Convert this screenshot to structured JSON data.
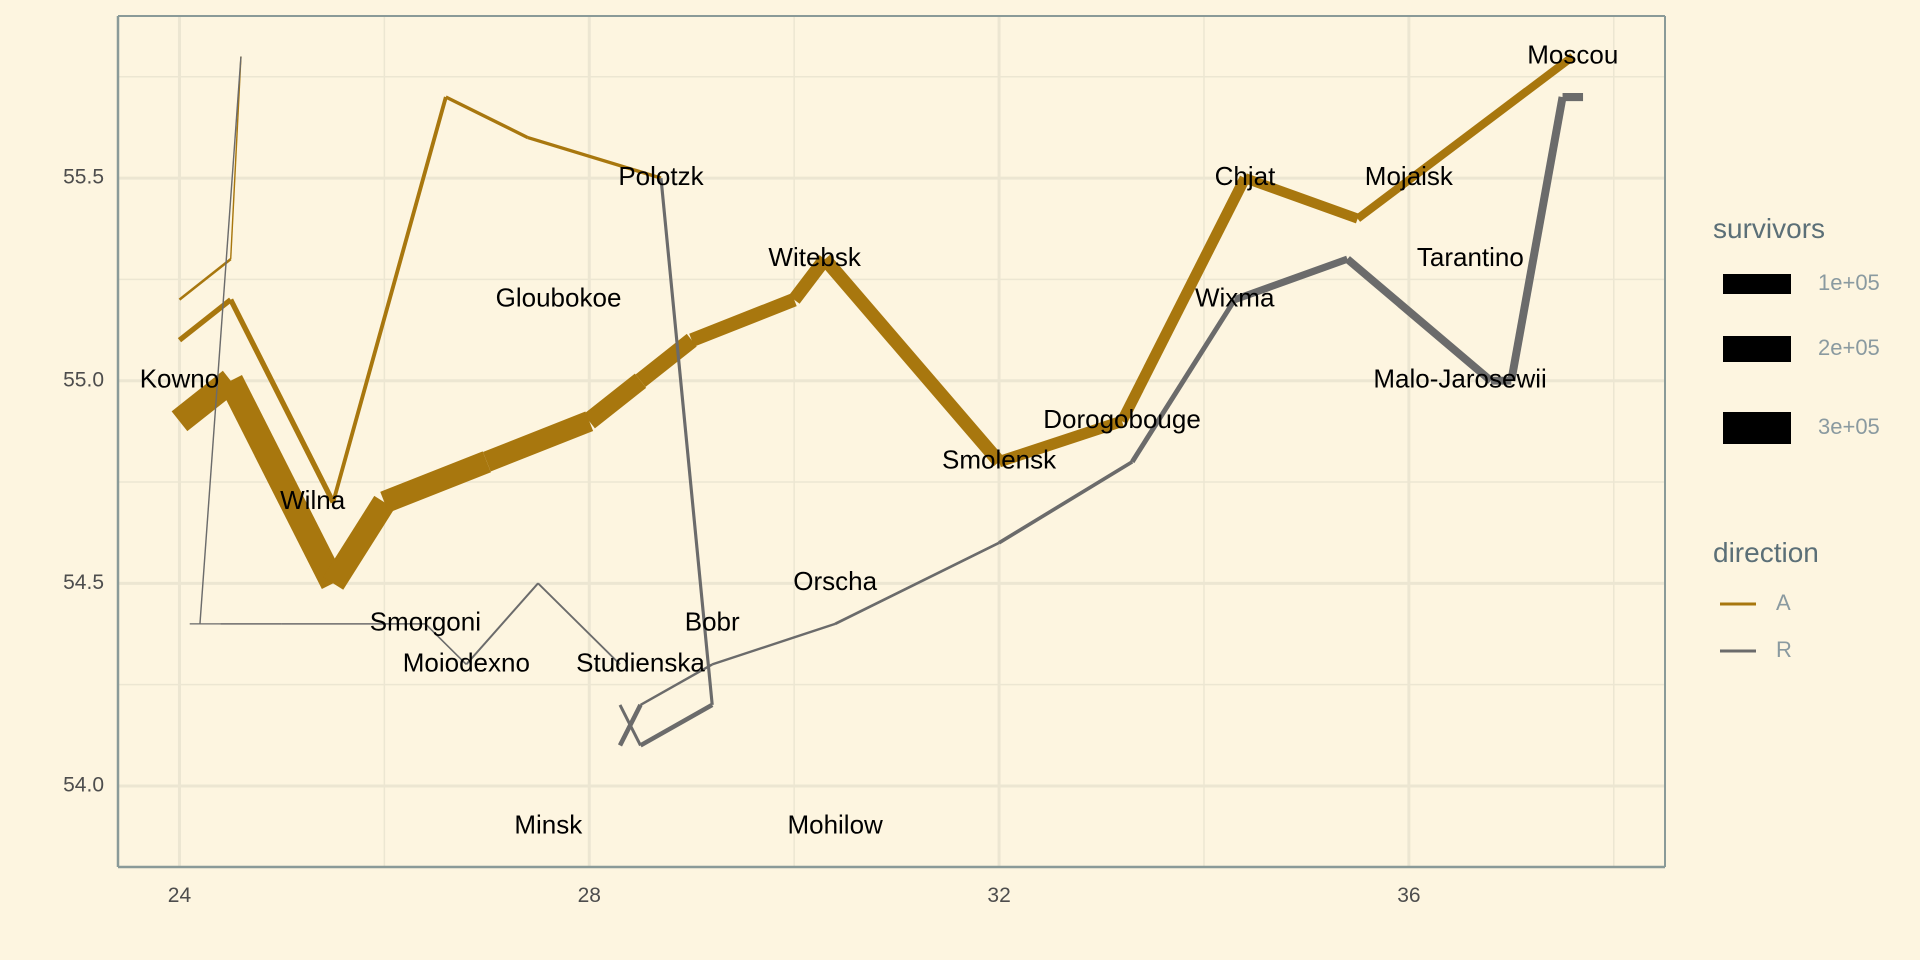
{
  "chart_data": {
    "type": "line",
    "title": "",
    "xlabel": "",
    "ylabel": "",
    "xlim": [
      23.4,
      38.5
    ],
    "ylim": [
      53.8,
      55.9
    ],
    "x_ticks": [
      {
        "value": 24,
        "label": "24"
      },
      {
        "value": 28,
        "label": "28"
      },
      {
        "value": 32,
        "label": "32"
      },
      {
        "value": 36,
        "label": "36"
      }
    ],
    "y_ticks": [
      {
        "value": 54.0,
        "label": "54.0"
      },
      {
        "value": 54.5,
        "label": "54.5"
      },
      {
        "value": 55.0,
        "label": "55.0"
      },
      {
        "value": 55.5,
        "label": "55.5"
      }
    ],
    "grid": true,
    "legend_position": "right",
    "colors": {
      "A": "#a8770e",
      "R": "#6b6b6b",
      "background": "#fdf5e0",
      "grid": "#ece6d2",
      "axis": "#8a9a98"
    },
    "segments": [
      {
        "direction": "A",
        "survivors": 340000,
        "x": [
          24.0,
          24.5
        ],
        "y": [
          54.9,
          55.0
        ]
      },
      {
        "direction": "A",
        "survivors": 340000,
        "x": [
          24.5,
          25.5
        ],
        "y": [
          55.0,
          54.5
        ]
      },
      {
        "direction": "A",
        "survivors": 320000,
        "x": [
          25.5,
          26.0
        ],
        "y": [
          54.5,
          54.7
        ]
      },
      {
        "direction": "A",
        "survivors": 300000,
        "x": [
          26.0,
          27.0
        ],
        "y": [
          54.7,
          54.8
        ]
      },
      {
        "direction": "A",
        "survivors": 280000,
        "x": [
          27.0,
          28.0
        ],
        "y": [
          54.8,
          54.9
        ]
      },
      {
        "direction": "A",
        "survivors": 240000,
        "x": [
          28.0,
          28.5
        ],
        "y": [
          54.9,
          55.0
        ]
      },
      {
        "direction": "A",
        "survivors": 210000,
        "x": [
          28.5,
          29.0
        ],
        "y": [
          55.0,
          55.1
        ]
      },
      {
        "direction": "A",
        "survivors": 180000,
        "x": [
          29.0,
          30.0
        ],
        "y": [
          55.1,
          55.2
        ]
      },
      {
        "direction": "A",
        "survivors": 175000,
        "x": [
          30.0,
          30.3
        ],
        "y": [
          55.2,
          55.3
        ]
      },
      {
        "direction": "A",
        "survivors": 175000,
        "x": [
          30.3,
          32.0
        ],
        "y": [
          55.3,
          54.8
        ]
      },
      {
        "direction": "A",
        "survivors": 145000,
        "x": [
          32.0,
          33.2
        ],
        "y": [
          54.8,
          54.9
        ]
      },
      {
        "direction": "A",
        "survivors": 140000,
        "x": [
          33.2,
          34.4
        ],
        "y": [
          54.9,
          55.5
        ]
      },
      {
        "direction": "A",
        "survivors": 127100,
        "x": [
          34.4,
          35.5
        ],
        "y": [
          55.5,
          55.4
        ]
      },
      {
        "direction": "A",
        "survivors": 100000,
        "x": [
          35.5,
          37.6
        ],
        "y": [
          55.4,
          55.8
        ]
      },
      {
        "direction": "A",
        "survivors": 60000,
        "x": [
          24.0,
          24.5
        ],
        "y": [
          55.1,
          55.2
        ]
      },
      {
        "direction": "A",
        "survivors": 60000,
        "x": [
          24.5,
          25.5
        ],
        "y": [
          55.2,
          54.7
        ]
      },
      {
        "direction": "A",
        "survivors": 40000,
        "x": [
          25.5,
          26.6
        ],
        "y": [
          54.7,
          55.7
        ]
      },
      {
        "direction": "A",
        "survivors": 33000,
        "x": [
          26.6,
          27.4
        ],
        "y": [
          55.7,
          55.6
        ]
      },
      {
        "direction": "A",
        "survivors": 33000,
        "x": [
          27.4,
          28.7
        ],
        "y": [
          55.6,
          55.5
        ]
      },
      {
        "direction": "A",
        "survivors": 22000,
        "x": [
          24.0,
          24.5
        ],
        "y": [
          55.2,
          55.3
        ]
      },
      {
        "direction": "A",
        "survivors": 6000,
        "x": [
          24.5,
          24.6
        ],
        "y": [
          55.3,
          55.8
        ]
      },
      {
        "direction": "R",
        "survivors": 100000,
        "x": [
          37.7,
          37.5
        ],
        "y": [
          55.7,
          55.7
        ]
      },
      {
        "direction": "R",
        "survivors": 98000,
        "x": [
          37.5,
          37.0
        ],
        "y": [
          55.7,
          55.0
        ]
      },
      {
        "direction": "R",
        "survivors": 97000,
        "x": [
          37.0,
          36.8
        ],
        "y": [
          55.0,
          55.0
        ]
      },
      {
        "direction": "R",
        "survivors": 96000,
        "x": [
          36.8,
          35.4
        ],
        "y": [
          55.0,
          55.3
        ]
      },
      {
        "direction": "R",
        "survivors": 87000,
        "x": [
          35.4,
          34.3
        ],
        "y": [
          55.3,
          55.2
        ]
      },
      {
        "direction": "R",
        "survivors": 55000,
        "x": [
          34.3,
          33.3
        ],
        "y": [
          55.2,
          54.8
        ]
      },
      {
        "direction": "R",
        "survivors": 37000,
        "x": [
          33.3,
          32.0
        ],
        "y": [
          54.8,
          54.6
        ]
      },
      {
        "direction": "R",
        "survivors": 24000,
        "x": [
          32.0,
          30.4
        ],
        "y": [
          54.6,
          54.4
        ]
      },
      {
        "direction": "R",
        "survivors": 20000,
        "x": [
          30.4,
          29.2
        ],
        "y": [
          54.4,
          54.3
        ]
      },
      {
        "direction": "R",
        "survivors": 20000,
        "x": [
          29.2,
          28.5
        ],
        "y": [
          54.3,
          54.2
        ]
      },
      {
        "direction": "R",
        "survivors": 50000,
        "x": [
          28.5,
          28.3
        ],
        "y": [
          54.2,
          54.1
        ]
      },
      {
        "direction": "R",
        "survivors": 30000,
        "x": [
          28.7,
          29.2
        ],
        "y": [
          55.5,
          54.2
        ]
      },
      {
        "direction": "R",
        "survivors": 50000,
        "x": [
          29.2,
          28.5
        ],
        "y": [
          54.2,
          54.1
        ]
      },
      {
        "direction": "R",
        "survivors": 28000,
        "x": [
          28.5,
          28.3
        ],
        "y": [
          54.1,
          54.2
        ]
      },
      {
        "direction": "R",
        "survivors": 12000,
        "x": [
          28.3,
          27.5
        ],
        "y": [
          54.3,
          54.5
        ]
      },
      {
        "direction": "R",
        "survivors": 14000,
        "x": [
          27.5,
          26.8
        ],
        "y": [
          54.5,
          54.3
        ]
      },
      {
        "direction": "R",
        "survivors": 8000,
        "x": [
          26.8,
          26.4
        ],
        "y": [
          54.3,
          54.4
        ]
      },
      {
        "direction": "R",
        "survivors": 8000,
        "x": [
          26.4,
          25.0
        ],
        "y": [
          54.4,
          54.4
        ]
      },
      {
        "direction": "R",
        "survivors": 8000,
        "x": [
          25.0,
          24.4
        ],
        "y": [
          54.4,
          54.4
        ]
      },
      {
        "direction": "R",
        "survivors": 4000,
        "x": [
          24.4,
          24.2
        ],
        "y": [
          54.4,
          54.4
        ]
      },
      {
        "direction": "R",
        "survivors": 4000,
        "x": [
          24.2,
          24.1
        ],
        "y": [
          54.4,
          54.4
        ]
      },
      {
        "direction": "R",
        "survivors": 6000,
        "x": [
          24.6,
          24.2
        ],
        "y": [
          55.8,
          54.4
        ]
      }
    ],
    "cities": [
      {
        "name": "Kowno",
        "x": 24.0,
        "y": 55.0
      },
      {
        "name": "Wilna",
        "x": 25.3,
        "y": 54.7
      },
      {
        "name": "Smorgoni",
        "x": 26.4,
        "y": 54.4
      },
      {
        "name": "Moiodexno",
        "x": 26.8,
        "y": 54.3
      },
      {
        "name": "Gloubokoe",
        "x": 27.7,
        "y": 55.2
      },
      {
        "name": "Minsk",
        "x": 27.6,
        "y": 53.9
      },
      {
        "name": "Studienska",
        "x": 28.5,
        "y": 54.3
      },
      {
        "name": "Polotzk",
        "x": 28.7,
        "y": 55.5
      },
      {
        "name": "Bobr",
        "x": 29.2,
        "y": 54.4
      },
      {
        "name": "Witebsk",
        "x": 30.2,
        "y": 55.3
      },
      {
        "name": "Orscha",
        "x": 30.4,
        "y": 54.5
      },
      {
        "name": "Mohilow",
        "x": 30.4,
        "y": 53.9
      },
      {
        "name": "Smolensk",
        "x": 32.0,
        "y": 54.8
      },
      {
        "name": "Dorogobouge",
        "x": 33.2,
        "y": 54.9
      },
      {
        "name": "Wixma",
        "x": 34.3,
        "y": 55.2
      },
      {
        "name": "Chjat",
        "x": 34.4,
        "y": 55.5
      },
      {
        "name": "Mojaisk",
        "x": 36.0,
        "y": 55.5
      },
      {
        "name": "Tarantino",
        "x": 36.6,
        "y": 55.3
      },
      {
        "name": "Malo-Jarosewii",
        "x": 36.5,
        "y": 55.0
      },
      {
        "name": "Moscou",
        "x": 37.6,
        "y": 55.8
      }
    ],
    "legend": {
      "size_title": "survivors",
      "size_items": [
        {
          "label": "1e+05",
          "value": 100000
        },
        {
          "label": "2e+05",
          "value": 200000
        },
        {
          "label": "3e+05",
          "value": 300000
        }
      ],
      "color_title": "direction",
      "color_items": [
        {
          "label": "A",
          "key": "A"
        },
        {
          "label": "R",
          "key": "R"
        }
      ]
    }
  }
}
